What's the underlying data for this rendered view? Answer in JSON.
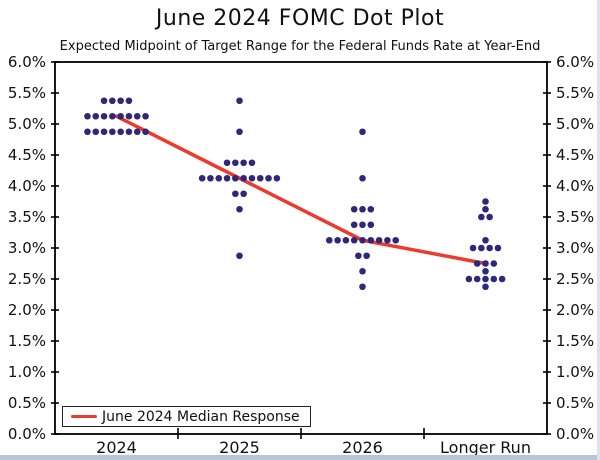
{
  "title": "June 2024 FOMC Dot Plot",
  "subtitle": "Expected Midpoint of Target Range for the Federal Funds Rate at Year-End",
  "legend": {
    "label": "June 2024 Median Response"
  },
  "colors": {
    "dot": "#2e2878",
    "median_line": "#ec3b2e",
    "axis": "#000000",
    "text": "#111111",
    "bottom_bar": "#b6c5da"
  },
  "chart_data": {
    "type": "scatter",
    "title": "June 2024 FOMC Dot Plot",
    "subtitle": "Expected Midpoint of Target Range for the Federal Funds Rate at Year-End",
    "categories": [
      "2024",
      "2025",
      "2026",
      "Longer Run"
    ],
    "y_axis": {
      "min": 0,
      "max": 6,
      "step": 0.5,
      "format": "percent",
      "grid": false
    },
    "y_tick_labels": [
      "0.0%",
      "0.5%",
      "1.0%",
      "1.5%",
      "2.0%",
      "2.5%",
      "3.0%",
      "3.5%",
      "4.0%",
      "4.5%",
      "5.0%",
      "5.5%",
      "6.0%"
    ],
    "legend_position": "bottom-left",
    "series": [
      {
        "category": "2024",
        "dots": [
          {
            "rate": 5.375,
            "count": 4
          },
          {
            "rate": 5.125,
            "count": 8
          },
          {
            "rate": 4.875,
            "count": 8
          }
        ]
      },
      {
        "category": "2025",
        "dots": [
          {
            "rate": 5.375,
            "count": 1
          },
          {
            "rate": 4.875,
            "count": 1
          },
          {
            "rate": 4.375,
            "count": 4
          },
          {
            "rate": 4.125,
            "count": 10
          },
          {
            "rate": 3.875,
            "count": 2
          },
          {
            "rate": 3.625,
            "count": 1
          },
          {
            "rate": 2.875,
            "count": 1
          }
        ]
      },
      {
        "category": "2026",
        "dots": [
          {
            "rate": 4.875,
            "count": 1
          },
          {
            "rate": 4.125,
            "count": 1
          },
          {
            "rate": 3.625,
            "count": 3
          },
          {
            "rate": 3.375,
            "count": 3
          },
          {
            "rate": 3.125,
            "count": 9
          },
          {
            "rate": 2.875,
            "count": 2
          },
          {
            "rate": 2.625,
            "count": 1
          },
          {
            "rate": 2.375,
            "count": 1
          }
        ]
      },
      {
        "category": "Longer Run",
        "dots": [
          {
            "rate": 3.75,
            "count": 1
          },
          {
            "rate": 3.625,
            "count": 1
          },
          {
            "rate": 3.5,
            "count": 2
          },
          {
            "rate": 3.125,
            "count": 1
          },
          {
            "rate": 3.0,
            "count": 4
          },
          {
            "rate": 2.75,
            "count": 3
          },
          {
            "rate": 2.625,
            "count": 1
          },
          {
            "rate": 2.5,
            "count": 5
          },
          {
            "rate": 2.375,
            "count": 1
          }
        ]
      }
    ],
    "median_series": {
      "name": "June 2024 Median Response",
      "values_by_category": [
        5.125,
        4.125,
        3.125,
        2.75
      ]
    }
  }
}
